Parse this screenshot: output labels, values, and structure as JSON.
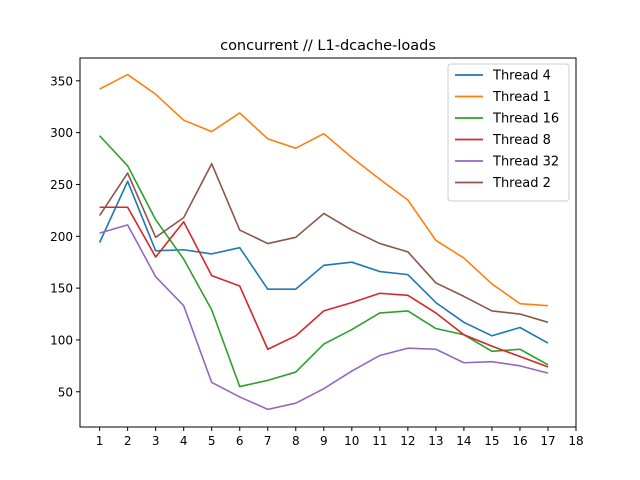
{
  "chart_data": {
    "type": "line",
    "title": "concurrent // L1-dcache-loads",
    "xlabel": "",
    "ylabel": "",
    "xlim": [
      0.3,
      18
    ],
    "ylim": [
      16,
      372
    ],
    "x_ticks": [
      1,
      2,
      3,
      4,
      5,
      6,
      7,
      8,
      9,
      10,
      11,
      12,
      13,
      14,
      15,
      16,
      17,
      18
    ],
    "y_ticks": [
      50,
      100,
      150,
      200,
      250,
      300,
      350
    ],
    "grid": false,
    "legend_position": "top-right",
    "x": [
      1,
      2,
      3,
      4,
      5,
      6,
      7,
      8,
      9,
      10,
      11,
      12,
      13,
      14,
      15,
      16,
      17
    ],
    "series": [
      {
        "name": "Thread 4",
        "color": "#1f77b4",
        "values": [
          194,
          253,
          186,
          187,
          183,
          189,
          149,
          149,
          172,
          175,
          166,
          163,
          136,
          117,
          104,
          112,
          97
        ]
      },
      {
        "name": "Thread 1",
        "color": "#ff7f0e",
        "values": [
          342,
          356,
          337,
          312,
          301,
          319,
          294,
          285,
          299,
          276,
          255,
          235,
          196,
          179,
          154,
          135,
          133
        ]
      },
      {
        "name": "Thread 16",
        "color": "#2ca02c",
        "values": [
          297,
          268,
          216,
          178,
          129,
          55,
          61,
          69,
          96,
          110,
          126,
          128,
          111,
          105,
          89,
          91,
          76
        ]
      },
      {
        "name": "Thread 8",
        "color": "#d62728",
        "values": [
          228,
          228,
          180,
          214,
          162,
          152,
          91,
          104,
          128,
          136,
          145,
          143,
          126,
          105,
          94,
          84,
          74
        ]
      },
      {
        "name": "Thread 32",
        "color": "#9467bd",
        "values": [
          203,
          211,
          161,
          133,
          59,
          45,
          33,
          39,
          53,
          70,
          85,
          92,
          91,
          78,
          79,
          75,
          68
        ]
      },
      {
        "name": "Thread 2",
        "color": "#8c564b",
        "values": [
          220,
          261,
          199,
          218,
          270,
          206,
          193,
          199,
          222,
          206,
          193,
          185,
          155,
          142,
          128,
          125,
          117
        ]
      }
    ]
  }
}
